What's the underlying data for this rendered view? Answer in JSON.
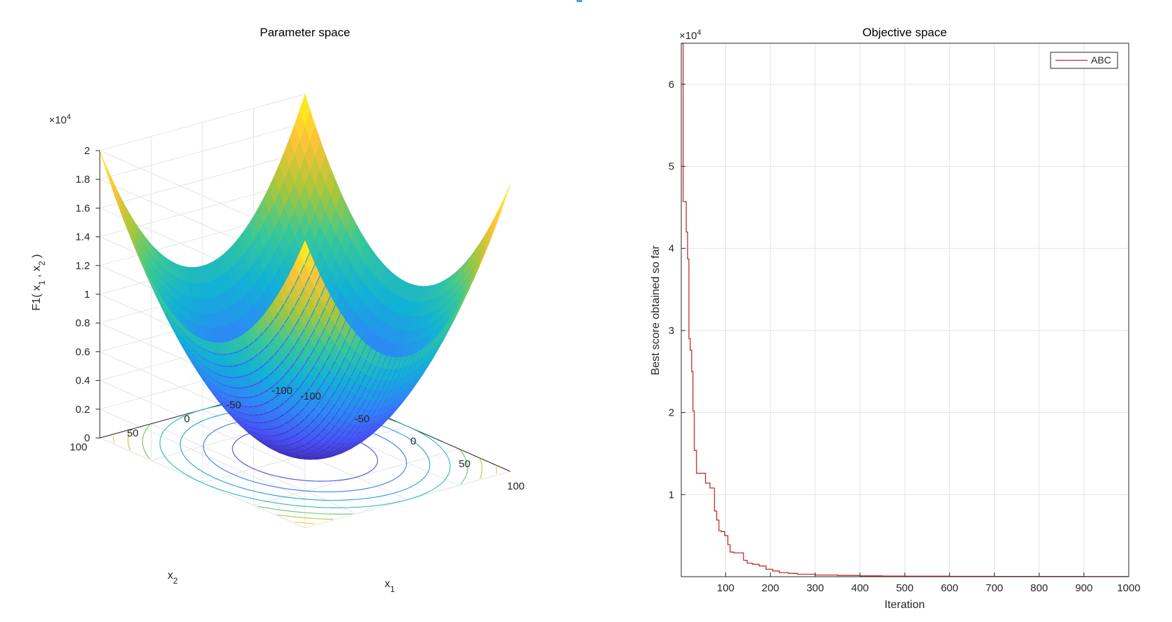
{
  "chart_data": [
    {
      "type": "surface3d",
      "title": "Parameter space",
      "function": "x1^2 + x2^2",
      "xlabel": "x",
      "xlabel_sub": "1",
      "ylabel": "x",
      "ylabel_sub": "2",
      "zlabel": {
        "prefix": "F1( x",
        "sub1": "1",
        "mid": " , x",
        "sub2": "2",
        "suffix": " )"
      },
      "xlim": [
        -100,
        100
      ],
      "ylim": [
        -100,
        100
      ],
      "zlim": [
        0,
        20000
      ],
      "x_ticks": [
        "-100",
        "-50",
        "0",
        "50",
        "100"
      ],
      "y_ticks": [
        "-100",
        "-50",
        "0",
        "50",
        "100"
      ],
      "z_ticks": [
        "0",
        "0.2",
        "0.4",
        "0.6",
        "0.8",
        "1",
        "1.2",
        "1.4",
        "1.6",
        "1.8",
        "2"
      ],
      "z_exponent": {
        "base": "×10",
        "power": "4"
      },
      "contour_radii": [
        50,
        70,
        86,
        100,
        112,
        122,
        132,
        141
      ],
      "colormap": "parula"
    },
    {
      "type": "line",
      "title": "Objective space",
      "xlabel": "Iteration",
      "ylabel": "Best score obtained so far",
      "xlim": [
        1,
        1000
      ],
      "ylim": [
        0,
        65000
      ],
      "x_ticks": [
        "100",
        "200",
        "300",
        "400",
        "500",
        "600",
        "700",
        "800",
        "900",
        "1000"
      ],
      "y_ticks": [
        "1",
        "2",
        "3",
        "4",
        "5",
        "6"
      ],
      "y_exponent": {
        "base": "×10",
        "power": "4"
      },
      "grid": true,
      "legend": {
        "position": "top-right",
        "entries": [
          "ABC"
        ]
      },
      "series": [
        {
          "name": "ABC",
          "color": "#c0302b",
          "x": [
            1,
            3,
            5,
            8,
            12,
            15,
            18,
            21,
            24,
            27,
            30,
            35,
            42,
            55,
            65,
            75,
            80,
            85,
            90,
            98,
            105,
            110,
            118,
            130,
            140,
            148,
            160,
            175,
            190,
            205,
            220,
            240,
            260,
            300,
            350,
            400,
            450,
            500,
            600,
            700,
            800,
            900,
            1000
          ],
          "values": [
            65000,
            65000,
            45700,
            45700,
            42000,
            38700,
            29000,
            27600,
            25000,
            20200,
            15400,
            12600,
            12600,
            11400,
            10800,
            8000,
            6900,
            5600,
            5500,
            5000,
            3900,
            3000,
            2900,
            2900,
            2000,
            1650,
            1500,
            1300,
            900,
            700,
            500,
            400,
            300,
            200,
            150,
            100,
            80,
            60,
            40,
            30,
            25,
            20,
            15
          ]
        }
      ]
    }
  ]
}
